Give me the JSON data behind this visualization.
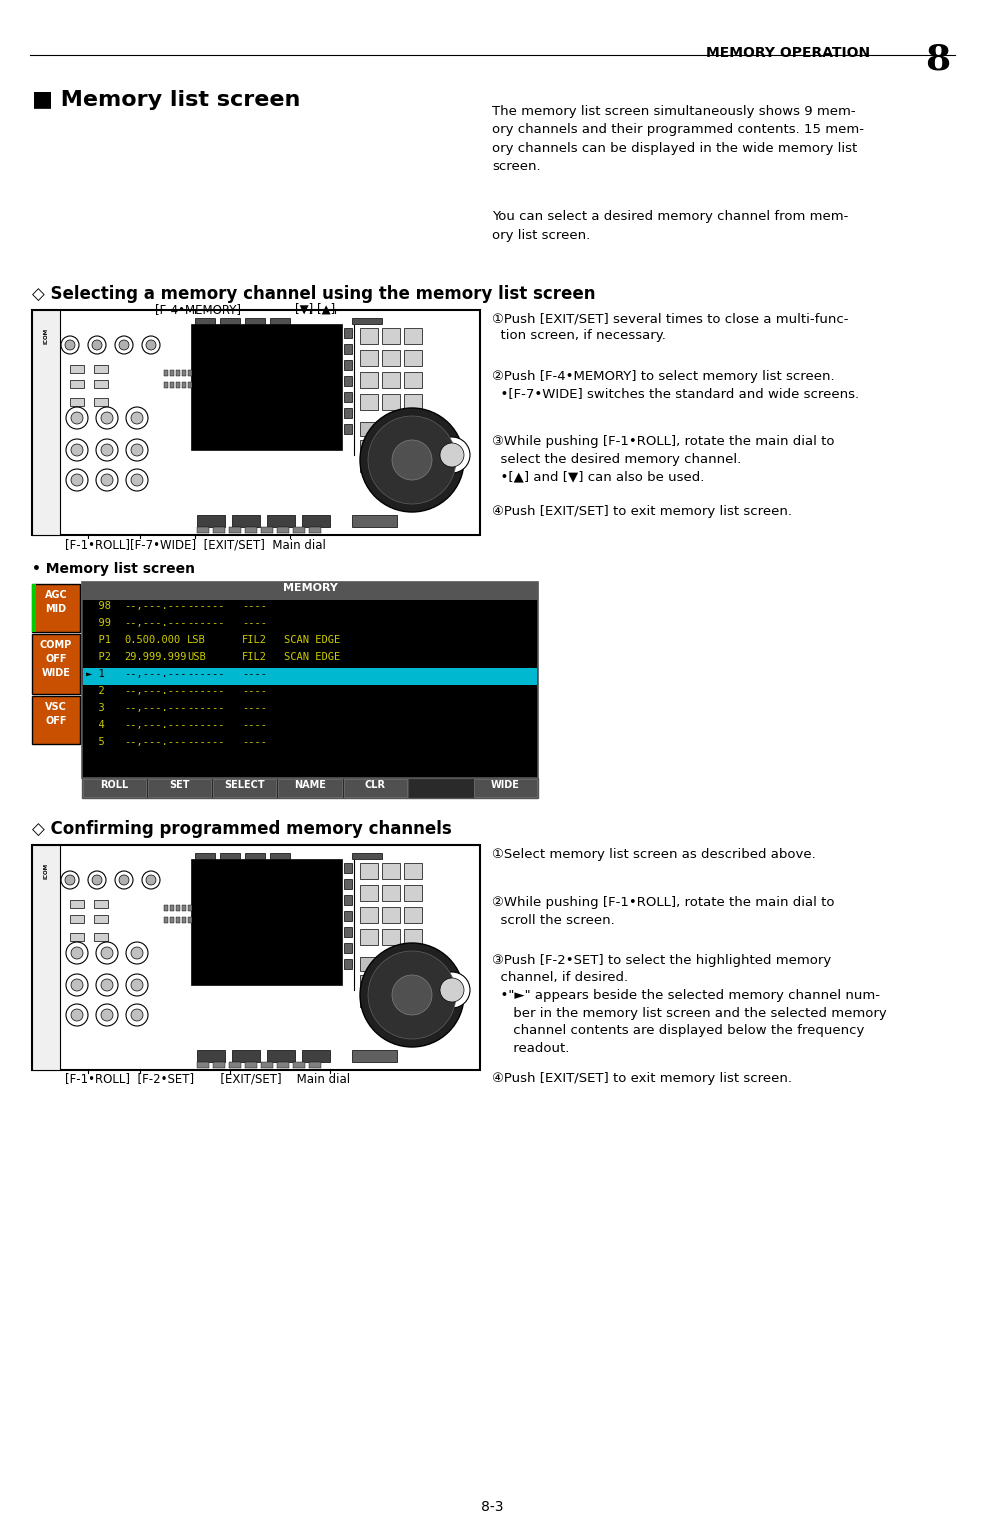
{
  "page_bg": "#ffffff",
  "header_text": "MEMORY OPERATION",
  "header_number": "8",
  "page_number": "8-3",
  "section1_title": "■ Memory list screen",
  "section1_para1": "The memory list screen simultaneously shows 9 mem-\nory channels and their programmed contents. 15 mem-\nory channels can be displayed in the wide memory list\nscreen.",
  "section1_para2": "You can select a desired memory channel from mem-\nory list screen.",
  "section2_title": "◇ Selecting a memory channel using the memory list screen",
  "section2_label_top": "[F-4•MEMORY]   [▼] [▲]",
  "section2_label_bottom": "[F-1•ROLL][F-7•WIDE]  [EXIT/SET]  Main dial",
  "section2_step1": "①Push [EXIT/SET] several times to close a multi-func-\n  tion screen, if necessary.",
  "section2_step2": "②Push [F-4•MEMORY] to select memory list screen.\n  •[F-7•WIDE] switches the standard and wide screens.",
  "section2_step3": "③While pushing [F-1•ROLL], rotate the main dial to\n  select the desired memory channel.\n  •[▲] and [▼] can also be used.",
  "section2_step4": "④Push [EXIT/SET] to exit memory list screen.",
  "memory_screen_label": "• Memory list screen",
  "memory_rows": [
    {
      "ch": "98",
      "freq": "--,---.---",
      "mode": "------",
      "fil": "----",
      "name": "",
      "hl": false
    },
    {
      "ch": "99",
      "freq": "--,---.---",
      "mode": "------",
      "fil": "----",
      "name": "",
      "hl": false
    },
    {
      "ch": "P1",
      "freq": "0.500.000",
      "mode": "LSB",
      "fil": "FIL2",
      "name": "SCAN EDGE",
      "hl": false
    },
    {
      "ch": "P2",
      "freq": "29.999.999",
      "mode": "USB",
      "fil": "FIL2",
      "name": "SCAN EDGE",
      "hl": false
    },
    {
      "ch": "1",
      "freq": "--,---.---",
      "mode": "------",
      "fil": "----",
      "name": "",
      "hl": true
    },
    {
      "ch": "2",
      "freq": "--,---.---",
      "mode": "------",
      "fil": "----",
      "name": "",
      "hl": false
    },
    {
      "ch": "3",
      "freq": "--,---.---",
      "mode": "------",
      "fil": "----",
      "name": "",
      "hl": false
    },
    {
      "ch": "4",
      "freq": "--,---.---",
      "mode": "------",
      "fil": "----",
      "name": "",
      "hl": false
    },
    {
      "ch": "5",
      "freq": "--,---.---",
      "mode": "------",
      "fil": "----",
      "name": "",
      "hl": false
    }
  ],
  "memory_buttons": [
    "ROLL",
    "SET",
    "SELECT",
    "NAME",
    "CLR",
    "",
    "WIDE"
  ],
  "memory_side_labels": [
    {
      "lines": [
        "AGC",
        "MID"
      ],
      "color": "#c85000",
      "green_bar": true
    },
    {
      "lines": [
        "COMP",
        "OFF",
        "WIDE"
      ],
      "color": "#c85000",
      "green_bar": false
    },
    {
      "lines": [
        "VSC",
        "OFF"
      ],
      "color": "#c85000",
      "green_bar": false
    }
  ],
  "section3_title": "◇ Confirming programmed memory channels",
  "section3_label_bottom": "[F-1•ROLL]  [F-2•SET]       [EXIT/SET]    Main dial",
  "section3_step1": "①Select memory list screen as described above.",
  "section3_step2": "②While pushing [F-1•ROLL], rotate the main dial to\n  scroll the screen.",
  "section3_step3": "③Push [F-2•SET] to select the highlighted memory\n  channel, if desired.\n  •\"►\" appears beside the selected memory channel num-\n     ber in the memory list screen and the selected memory\n     channel contents are displayed below the frequency\n     readout.",
  "section3_step4": "④Push [EXIT/SET] to exit memory list screen."
}
